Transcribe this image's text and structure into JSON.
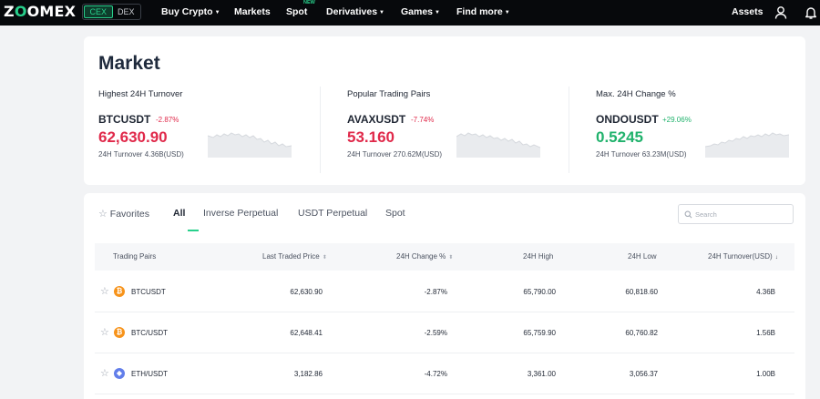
{
  "nav": {
    "logo": "ZOOMEX",
    "toggle": [
      "CEX",
      "DEX"
    ],
    "items": [
      {
        "label": "Buy Crypto",
        "caret": true
      },
      {
        "label": "Markets",
        "caret": false
      },
      {
        "label": "Spot",
        "caret": false,
        "badge": "NEW"
      },
      {
        "label": "Derivatives",
        "caret": true
      },
      {
        "label": "Games",
        "caret": true
      },
      {
        "label": "Find more",
        "caret": true
      }
    ],
    "assets": "Assets"
  },
  "market": {
    "title": "Market",
    "stats": [
      {
        "heading": "Highest 24H Turnover",
        "pair": "BTCUSDT",
        "change": "-2.87%",
        "price": "62,630.90",
        "turnover": "24H Turnover 4.36B(USD)",
        "direction": "down"
      },
      {
        "heading": "Popular Trading Pairs",
        "pair": "AVAXUSDT",
        "change": "-7.74%",
        "price": "53.160",
        "turnover": "24H Turnover 270.62M(USD)",
        "direction": "down"
      },
      {
        "heading": "Max. 24H Change %",
        "pair": "ONDOUSDT",
        "change": "+29.06%",
        "price": "0.5245",
        "turnover": "24H Turnover 63.23M(USD)",
        "direction": "up"
      }
    ]
  },
  "table": {
    "tabs": [
      "Favorites",
      "All",
      "Inverse Perpetual",
      "USDT Perpetual",
      "Spot"
    ],
    "active_tab": "All",
    "search_placeholder": "Search",
    "columns": [
      "Trading Pairs",
      "Last Traded Price",
      "24H Change %",
      "24H High",
      "24H Low",
      "24H Turnover(USD)"
    ],
    "rows": [
      {
        "coin": "btc-icon",
        "pair": "BTCUSDT",
        "price": "62,630.90",
        "change": "-2.87%",
        "high": "65,790.00",
        "low": "60,818.60",
        "turnover": "4.36B"
      },
      {
        "coin": "btc-icon",
        "pair": "BTC/USDT",
        "price": "62,648.41",
        "change": "-2.59%",
        "high": "65,759.90",
        "low": "60,760.82",
        "turnover": "1.56B"
      },
      {
        "coin": "eth-icon",
        "pair": "ETH/USDT",
        "price": "3,182.86",
        "change": "-4.72%",
        "high": "3,361.00",
        "low": "3,056.37",
        "turnover": "1.00B"
      }
    ]
  },
  "colors": {
    "accent": "#28d08c",
    "down": "#e0294a",
    "up": "#20b26c",
    "nav_bg": "#07090c"
  }
}
